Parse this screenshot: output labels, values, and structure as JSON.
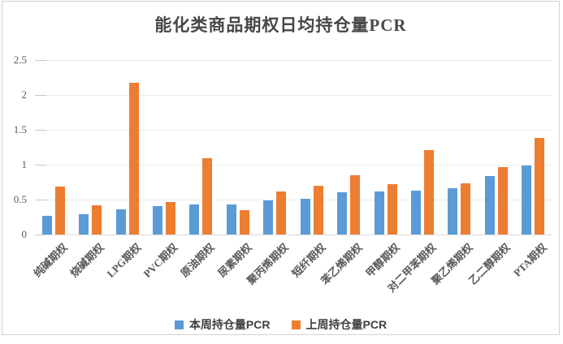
{
  "chart_data": {
    "type": "bar",
    "title": "能化类商品期权日均持仓量PCR",
    "categories": [
      "纯碱期权",
      "烧碱期权",
      "LPG期权",
      "PVC期权",
      "原油期权",
      "尿素期权",
      "聚丙烯期权",
      "短纤期权",
      "苯乙烯期权",
      "甲醇期权",
      "对二甲苯期权",
      "聚乙烯期权",
      "乙二醇期权",
      "PTA期权"
    ],
    "series": [
      {
        "name": "本周持仓量PCR",
        "color": "#5B9BD5",
        "values": [
          0.27,
          0.29,
          0.36,
          0.41,
          0.43,
          0.43,
          0.49,
          0.51,
          0.6,
          0.62,
          0.63,
          0.66,
          0.84,
          0.99
        ]
      },
      {
        "name": "上周持仓量PCR",
        "color": "#ED7D31",
        "values": [
          0.69,
          0.42,
          2.18,
          0.47,
          1.09,
          0.35,
          0.62,
          0.7,
          0.85,
          0.72,
          1.21,
          0.73,
          0.96,
          1.38
        ]
      }
    ],
    "xlabel": "",
    "ylabel": "",
    "ylim": [
      0,
      2.5
    ],
    "ytick_step": 0.5,
    "ytick_labels": [
      "0",
      "0.5",
      "1",
      "1.5",
      "2",
      "2.5"
    ],
    "grid": true,
    "legend_position": "bottom"
  },
  "colors": {
    "title_text": "#474747",
    "axis_text": "#595959",
    "gridline": "#E9E9E9",
    "axis_line": "#D9D9D9",
    "frame_border": "#D2D2D2",
    "background": "#FFFFFF"
  }
}
